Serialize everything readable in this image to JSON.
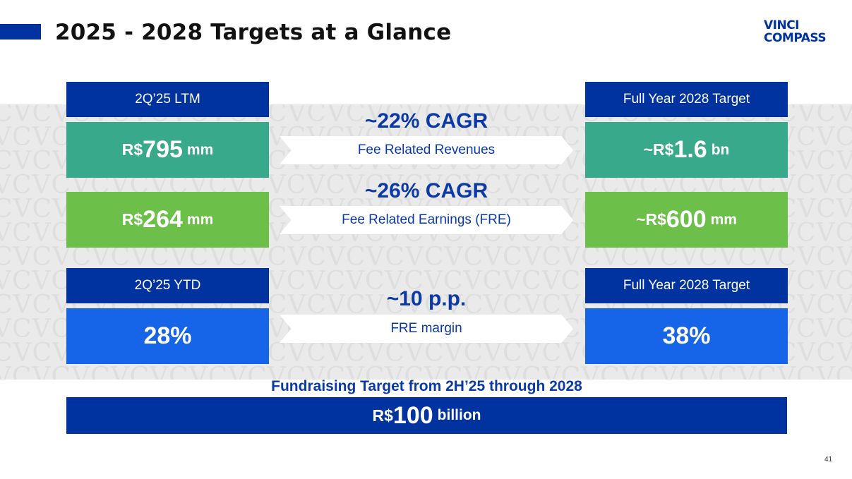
{
  "header": {
    "title": "2025 - 2028 Targets at a Glance",
    "logo_line1": "VINCI",
    "logo_line2": "COMPASS"
  },
  "colors": {
    "navy": "#0033a0",
    "teal": "#38a98a",
    "green": "#6cc04a",
    "blue": "#1665e8"
  },
  "left_column": {
    "header_1": "2Q’25 LTM",
    "revenue": {
      "prefix": "R$",
      "value": "795",
      "unit": "mm"
    },
    "earnings": {
      "prefix": "R$",
      "value": "264",
      "unit": "mm"
    },
    "header_2": "2Q’25 YTD",
    "margin": "28%"
  },
  "middle": {
    "cagr_1": "~22% CAGR",
    "arrow_1": "Fee Related Revenues",
    "cagr_2": "~26% CAGR",
    "arrow_2": "Fee Related Earnings (FRE)",
    "delta_3": "~10 p.p.",
    "arrow_3": "FRE margin"
  },
  "right_column": {
    "header_1": "Full Year 2028 Target",
    "revenue": {
      "prefix": "~R$",
      "value": "1.6",
      "unit": "bn"
    },
    "earnings": {
      "prefix": "~R$",
      "value": "600",
      "unit": "mm"
    },
    "header_2": "Full Year 2028 Target",
    "margin": "38%"
  },
  "fundraising": {
    "title": "Fundraising Target from 2H’25 through 2028",
    "prefix": "R$",
    "value": "100",
    "unit": "billion"
  },
  "footer": {
    "page_number": "41"
  }
}
